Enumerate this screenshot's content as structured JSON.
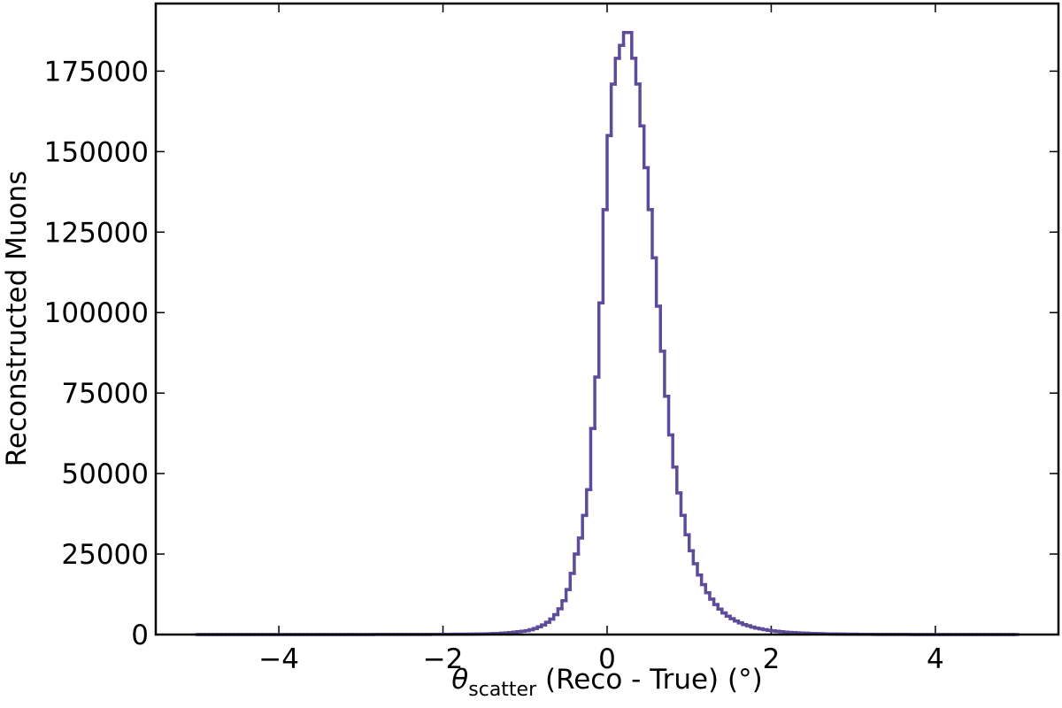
{
  "chart_data": {
    "type": "histogram",
    "x_label": {
      "symbol": "θ",
      "subscript": "scatter",
      "text": " (Reco - True) (°)"
    },
    "y_label": "Reconstructed Muons",
    "color": "#5e4b9a",
    "xlim": [
      -5.5,
      5.5
    ],
    "ylim": [
      0,
      196000
    ],
    "xticks": [
      {
        "value": -4,
        "label": "−4"
      },
      {
        "value": -2,
        "label": "−2"
      },
      0,
      2,
      4
    ],
    "yticks": [
      0,
      25000,
      50000,
      75000,
      100000,
      125000,
      150000,
      175000
    ],
    "bins": [
      -5,
      -4.95,
      -4.9,
      -4.85,
      -4.8,
      -4.75,
      -4.7,
      -4.65,
      -4.6,
      -4.55,
      -4.5,
      -4.45,
      -4.4,
      -4.35,
      -4.3,
      -4.25,
      -4.2,
      -4.15,
      -4.1,
      -4.05,
      -4,
      -3.95,
      -3.9,
      -3.85,
      -3.8,
      -3.75,
      -3.7,
      -3.65,
      -3.6,
      -3.55,
      -3.5,
      -3.45,
      -3.4,
      -3.35,
      -3.3,
      -3.25,
      -3.2,
      -3.15,
      -3.1,
      -3.05,
      -3,
      -2.95,
      -2.9,
      -2.85,
      -2.8,
      -2.75,
      -2.7,
      -2.65,
      -2.6,
      -2.55,
      -2.5,
      -2.45,
      -2.4,
      -2.35,
      -2.3,
      -2.25,
      -2.2,
      -2.15,
      -2.1,
      -2.05,
      -2,
      -1.95,
      -1.9,
      -1.85,
      -1.8,
      -1.75,
      -1.7,
      -1.65,
      -1.6,
      -1.55,
      -1.5,
      -1.45,
      -1.4,
      -1.35,
      -1.3,
      -1.25,
      -1.2,
      -1.15,
      -1.1,
      -1.05,
      -1,
      -0.95,
      -0.9,
      -0.85,
      -0.8,
      -0.75,
      -0.7,
      -0.65,
      -0.6,
      -0.55,
      -0.5,
      -0.45,
      -0.4,
      -0.35,
      -0.3,
      -0.25,
      -0.2,
      -0.15,
      -0.1,
      -0.05,
      0,
      0.05,
      0.1,
      0.15,
      0.2,
      0.25,
      0.3,
      0.35,
      0.4,
      0.45,
      0.5,
      0.55,
      0.6,
      0.65,
      0.7,
      0.75,
      0.8,
      0.85,
      0.9,
      0.95,
      1,
      1.05,
      1.1,
      1.15,
      1.2,
      1.25,
      1.3,
      1.35,
      1.4,
      1.45,
      1.5,
      1.55,
      1.6,
      1.65,
      1.7,
      1.75,
      1.8,
      1.85,
      1.9,
      1.95,
      2,
      2.05,
      2.1,
      2.15,
      2.2,
      2.25,
      2.3,
      2.35,
      2.4,
      2.45,
      2.5,
      2.55,
      2.6,
      2.65,
      2.7,
      2.75,
      2.8,
      2.85,
      2.9,
      2.95,
      3,
      3.05,
      3.1,
      3.15,
      3.2,
      3.25,
      3.3,
      3.35,
      3.4,
      3.45,
      3.5,
      3.55,
      3.6,
      3.65,
      3.7,
      3.75,
      3.8,
      3.85,
      3.9,
      3.95,
      4,
      4.05,
      4.1,
      4.15,
      4.2,
      4.25,
      4.3,
      4.35,
      4.4,
      4.45,
      4.5,
      4.55,
      4.6,
      4.65,
      4.7,
      4.75,
      4.8,
      4.85,
      4.9,
      4.95,
      5
    ],
    "values": [
      1,
      1,
      1,
      2,
      1,
      2,
      2,
      1,
      2,
      2,
      2,
      3,
      2,
      3,
      3,
      2,
      3,
      3,
      4,
      3,
      4,
      4,
      5,
      4,
      5,
      5,
      6,
      5,
      6,
      7,
      7,
      8,
      8,
      9,
      9,
      10,
      11,
      11,
      12,
      13,
      14,
      15,
      16,
      18,
      19,
      21,
      22,
      24,
      26,
      28,
      30,
      33,
      35,
      38,
      41,
      45,
      49,
      53,
      58,
      63,
      70,
      78,
      86,
      95,
      106,
      118,
      132,
      148,
      166,
      186,
      210,
      250,
      300,
      360,
      430,
      520,
      620,
      740,
      880,
      1040,
      1200,
      1500,
      1900,
      2400,
      3000,
      3800,
      4800,
      6200,
      8000,
      10500,
      14000,
      19000,
      25000,
      30000,
      37000,
      45000,
      64000,
      80000,
      103000,
      132000,
      155000,
      171000,
      179000,
      183000,
      187000,
      187000,
      179000,
      171000,
      158000,
      145000,
      132000,
      117000,
      102000,
      88000,
      74000,
      62000,
      52000,
      44000,
      37000,
      31000,
      26000,
      22000,
      18500,
      15500,
      13000,
      11000,
      9300,
      7900,
      6700,
      5700,
      4900,
      4200,
      3600,
      3100,
      2700,
      2300,
      2000,
      1750,
      1520,
      1320,
      1150,
      1000,
      880,
      770,
      670,
      590,
      520,
      455,
      400,
      350,
      310,
      270,
      240,
      210,
      185,
      165,
      145,
      128,
      113,
      100,
      88,
      78,
      69,
      61,
      54,
      48,
      43,
      38,
      34,
      30,
      27,
      24,
      21,
      19,
      17,
      15,
      13,
      12,
      11,
      10,
      9,
      8,
      7,
      6,
      6,
      5,
      5,
      4,
      4,
      3,
      3,
      3,
      2,
      2,
      2,
      2,
      1,
      1,
      1,
      1
    ]
  }
}
